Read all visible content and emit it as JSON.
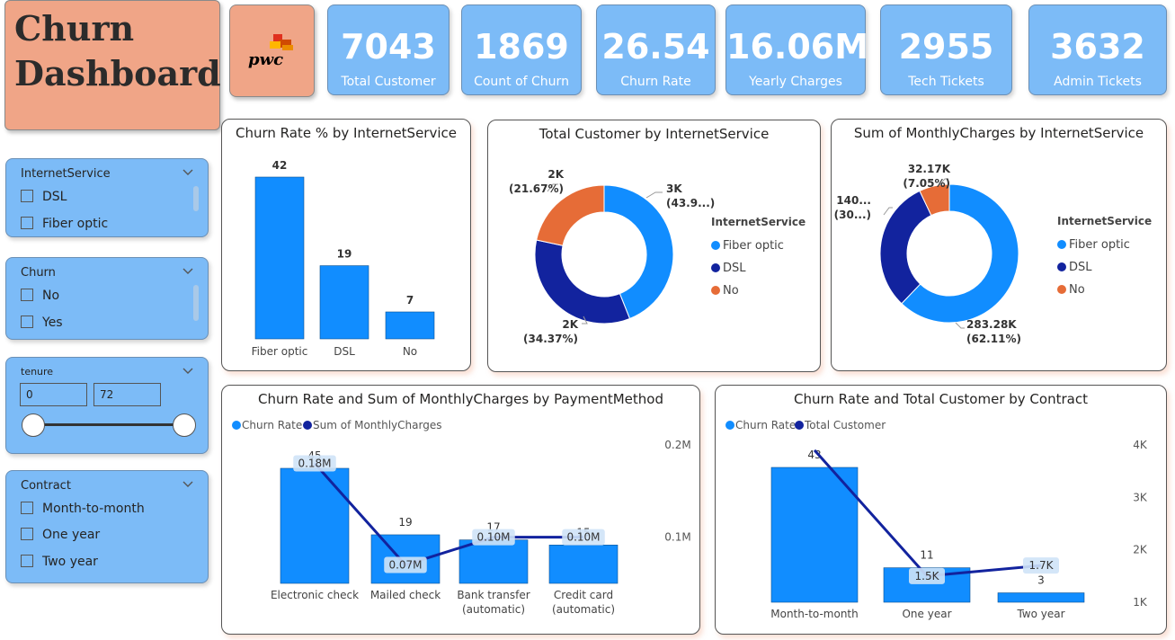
{
  "title": {
    "line1": "Churn",
    "line2": "Dashboard"
  },
  "logo": {
    "text": "pwc"
  },
  "kpis": [
    {
      "value": "7043",
      "label": "Total Customer"
    },
    {
      "value": "1869",
      "label": "Count of Churn"
    },
    {
      "value": "26.54",
      "label": "Churn Rate"
    },
    {
      "value": "16.06M",
      "label": "Yearly Charges"
    },
    {
      "value": "2955",
      "label": "Tech Tickets"
    },
    {
      "value": "3632",
      "label": "Admin Tickets"
    }
  ],
  "slicers": {
    "internet": {
      "title": "InternetService",
      "options": [
        "DSL",
        "Fiber optic"
      ]
    },
    "churn": {
      "title": "Churn",
      "options": [
        "No",
        "Yes"
      ]
    },
    "tenure": {
      "title": "tenure",
      "min": "0",
      "max": "72",
      "low_fraction": 0,
      "high_fraction": 1
    },
    "contract": {
      "title": "Contract",
      "options": [
        "Month-to-month",
        "One year",
        "Two year"
      ]
    }
  },
  "icons": {
    "chevron": "chevron-down-icon"
  },
  "colors": {
    "kpi_bg": "#7CBBF7",
    "title_bg": "#F0A587",
    "bar": "#118DFF",
    "line": "#12239E",
    "orange": "#E66C37"
  },
  "chart_data": [
    {
      "type": "bar",
      "title": "Churn Rate % by InternetService",
      "categories": [
        "Fiber optic",
        "DSL",
        "No"
      ],
      "values": [
        42,
        19,
        7
      ],
      "ylim": [
        0,
        42
      ]
    },
    {
      "type": "pie",
      "title": "Total Customer by InternetService",
      "legend_title": "InternetService",
      "legend": [
        "Fiber optic",
        "DSL",
        "No"
      ],
      "slices": [
        {
          "name": "Fiber optic",
          "value": 43.96,
          "label": "3K",
          "pct": "(43.9...)"
        },
        {
          "name": "DSL",
          "value": 34.37,
          "label": "2K",
          "pct": "(34.37%)"
        },
        {
          "name": "No",
          "value": 21.67,
          "label": "2K",
          "pct": "(21.67%)"
        }
      ]
    },
    {
      "type": "pie",
      "title": "Sum of MonthlyCharges by InternetService",
      "legend_title": "InternetService",
      "legend": [
        "Fiber optic",
        "DSL",
        "No"
      ],
      "slices": [
        {
          "name": "Fiber optic",
          "value": 62.11,
          "label": "283.28K",
          "pct": "(62.11%)"
        },
        {
          "name": "DSL",
          "value": 30.84,
          "label": "140...",
          "pct": "(30...)"
        },
        {
          "name": "No",
          "value": 7.05,
          "label": "32.17K",
          "pct": "(7.05%)"
        }
      ]
    },
    {
      "type": "bar",
      "title": "Churn Rate and Sum of MonthlyCharges by PaymentMethod",
      "legend": [
        "Churn Rate",
        "Sum of MonthlyCharges"
      ],
      "categories": [
        [
          "Electronic check"
        ],
        [
          "Mailed check"
        ],
        [
          "Bank transfer",
          "(automatic)"
        ],
        [
          "Credit card",
          "(automatic)"
        ]
      ],
      "bar_values": [
        45,
        19,
        17,
        15
      ],
      "bar_labels": [
        "45",
        "19",
        "17",
        "15"
      ],
      "line_values": [
        0.18,
        0.07,
        0.1,
        0.1
      ],
      "line_labels": [
        "0.18M",
        "0.07M",
        "0.10M",
        "0.10M"
      ],
      "bar_ylim": [
        0,
        45
      ],
      "y2_ticks": [
        "0.2M",
        "0.1M"
      ],
      "y2_values": [
        0.2,
        0.1
      ],
      "y2lim": [
        0.05,
        0.2
      ]
    },
    {
      "type": "bar",
      "title": "Churn Rate and Total Customer by Contract",
      "legend": [
        "Churn Rate",
        "Total Customer"
      ],
      "categories": [
        [
          "Month-to-month"
        ],
        [
          "One year"
        ],
        [
          "Two year"
        ]
      ],
      "bar_values": [
        43,
        11,
        3
      ],
      "bar_labels": [
        "43",
        "11",
        "3"
      ],
      "line_values": [
        3.9,
        1.5,
        1.7
      ],
      "line_labels": [
        "",
        "1.5K",
        "1.7K"
      ],
      "bar_ylim": [
        0,
        43
      ],
      "y2_ticks": [
        "4K",
        "3K",
        "2K",
        "1K"
      ],
      "y2_values": [
        4,
        3,
        2,
        1
      ],
      "y2lim": [
        1,
        4
      ]
    }
  ]
}
